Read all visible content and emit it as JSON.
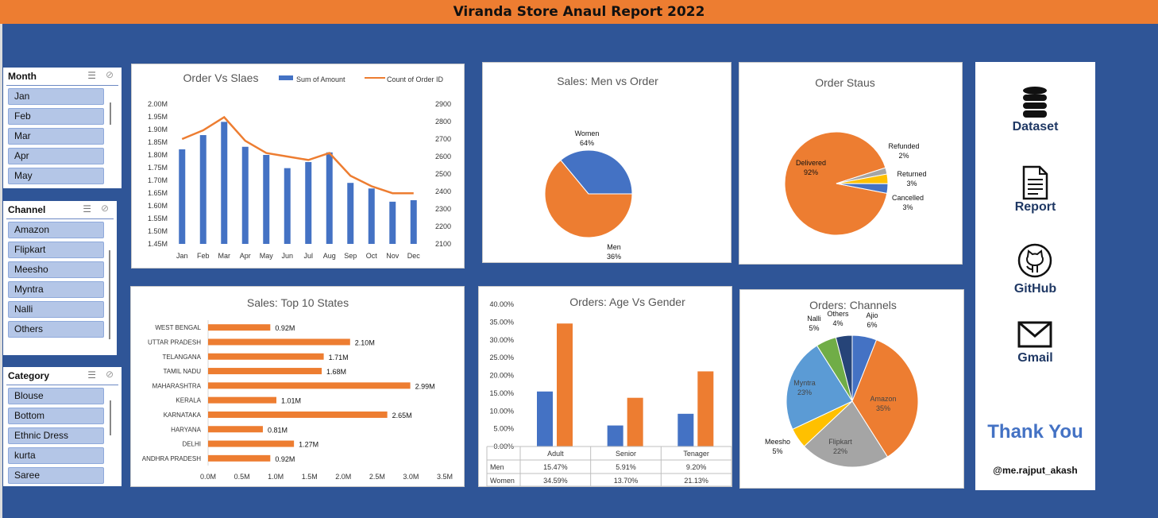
{
  "header": {
    "title": "Viranda Store Anaul Report 2022"
  },
  "slicers": {
    "month": {
      "title": "Month",
      "items": [
        "Jan",
        "Feb",
        "Mar",
        "Apr",
        "May"
      ]
    },
    "channel": {
      "title": "Channel",
      "items": [
        "Amazon",
        "Flipkart",
        "Meesho",
        "Myntra",
        "Nalli",
        "Others"
      ]
    },
    "category": {
      "title": "Category",
      "items": [
        "Blouse",
        "Bottom",
        "Ethnic Dress",
        "kurta",
        "Saree"
      ]
    }
  },
  "sidebar": {
    "links": [
      "Dataset",
      "Report",
      "GitHub",
      "Gmail"
    ],
    "thanks": "Thank You",
    "handle": "@me.rajput_akash"
  },
  "chart_data": [
    {
      "id": "order_vs_sales",
      "type": "bar+line",
      "title": "Order Vs Slaes",
      "categories": [
        "Jan",
        "Feb",
        "Mar",
        "Apr",
        "May",
        "Jun",
        "Jul",
        "Aug",
        "Sep",
        "Oct",
        "Nov",
        "Dec"
      ],
      "series": [
        {
          "name": "Sum of Amount",
          "type": "bar",
          "axis": "left",
          "color": "#4472c4",
          "values": [
            1822000,
            1878000,
            1930000,
            1832000,
            1800000,
            1748000,
            1772000,
            1810000,
            1690000,
            1668000,
            1616000,
            1622000
          ]
        },
        {
          "name": "Count of Order ID",
          "type": "line",
          "axis": "right",
          "color": "#ed7d31",
          "values": [
            2700,
            2750,
            2825,
            2690,
            2620,
            2600,
            2580,
            2620,
            2490,
            2430,
            2390,
            2390
          ]
        }
      ],
      "left_ticks": [
        "1.45M",
        "1.50M",
        "1.55M",
        "1.60M",
        "1.65M",
        "1.70M",
        "1.75M",
        "1.80M",
        "1.85M",
        "1.90M",
        "1.95M",
        "2.00M"
      ],
      "right_ticks": [
        "2100",
        "2200",
        "2300",
        "2400",
        "2500",
        "2600",
        "2700",
        "2800",
        "2900"
      ],
      "ylim": [
        1450000,
        2000000
      ],
      "y2lim": [
        2100,
        2900
      ],
      "legend": "top-right"
    },
    {
      "id": "men_vs_women",
      "type": "pie",
      "title": "Sales: Men vs Order",
      "slices": [
        {
          "label": "Women",
          "pct_label": "64%",
          "value": 64,
          "color": "#ed7d31"
        },
        {
          "label": "Men",
          "pct_label": "36%",
          "value": 36,
          "color": "#4472c4"
        }
      ]
    },
    {
      "id": "order_status",
      "type": "pie",
      "title": "Order Staus",
      "slices": [
        {
          "label": "Delivered",
          "pct_label": "92%",
          "value": 92,
          "color": "#ed7d31"
        },
        {
          "label": "Refunded",
          "pct_label": "2%",
          "value": 2,
          "color": "#a5a5a5"
        },
        {
          "label": "Returned",
          "pct_label": "3%",
          "value": 3,
          "color": "#ffc000"
        },
        {
          "label": "Cancelled",
          "pct_label": "3%",
          "value": 3,
          "color": "#4472c4"
        }
      ]
    },
    {
      "id": "top_states",
      "type": "bar",
      "orientation": "horizontal",
      "title": "Sales: Top 10 States",
      "categories": [
        "WEST BENGAL",
        "UTTAR PRADESH",
        "TELANGANA",
        "TAMIL NADU",
        "MAHARASHTRA",
        "KERALA",
        "KARNATAKA",
        "HARYANA",
        "DELHI",
        "ANDHRA PRADESH"
      ],
      "values": [
        0.92,
        2.1,
        1.71,
        1.68,
        2.99,
        1.01,
        2.65,
        0.81,
        1.27,
        0.92
      ],
      "value_labels": [
        "0.92M",
        "2.10M",
        "1.71M",
        "1.68M",
        "2.99M",
        "1.01M",
        "2.65M",
        "0.81M",
        "1.27M",
        "0.92M"
      ],
      "x_ticks": [
        "0.0M",
        "0.5M",
        "1.0M",
        "1.5M",
        "2.0M",
        "2.5M",
        "3.0M",
        "3.5M"
      ],
      "xlim": [
        0,
        3.5
      ],
      "color": "#ed7d31"
    },
    {
      "id": "age_gender",
      "type": "bar",
      "title": "Orders: Age Vs Gender",
      "categories": [
        "Adult",
        "Senior",
        "Tenager"
      ],
      "series": [
        {
          "name": "Men",
          "color": "#4472c4",
          "values": [
            15.47,
            5.91,
            9.2
          ],
          "labels": [
            "15.47%",
            "5.91%",
            "9.20%"
          ]
        },
        {
          "name": "Women",
          "color": "#ed7d31",
          "values": [
            34.59,
            13.7,
            21.13
          ],
          "labels": [
            "34.59%",
            "13.70%",
            "21.13%"
          ]
        }
      ],
      "y_ticks": [
        "0.00%",
        "5.00%",
        "10.00%",
        "15.00%",
        "20.00%",
        "25.00%",
        "30.00%",
        "35.00%",
        "40.00%"
      ],
      "ylim": [
        0,
        40
      ]
    },
    {
      "id": "channels",
      "type": "pie",
      "title": "Orders:  Channels",
      "slices": [
        {
          "label": "Ajio",
          "pct_label": "6%",
          "value": 6,
          "color": "#4472c4"
        },
        {
          "label": "Amazon",
          "pct_label": "35%",
          "value": 35,
          "color": "#ed7d31"
        },
        {
          "label": "Flipkart",
          "pct_label": "22%",
          "value": 22,
          "color": "#a5a5a5"
        },
        {
          "label": "Meesho",
          "pct_label": "5%",
          "value": 5,
          "color": "#ffc000"
        },
        {
          "label": "Myntra",
          "pct_label": "23%",
          "value": 23,
          "color": "#5b9bd5"
        },
        {
          "label": "Nalli",
          "pct_label": "5%",
          "value": 5,
          "color": "#70ad47"
        },
        {
          "label": "Others",
          "pct_label": "4%",
          "value": 4,
          "color": "#264478"
        }
      ]
    }
  ]
}
